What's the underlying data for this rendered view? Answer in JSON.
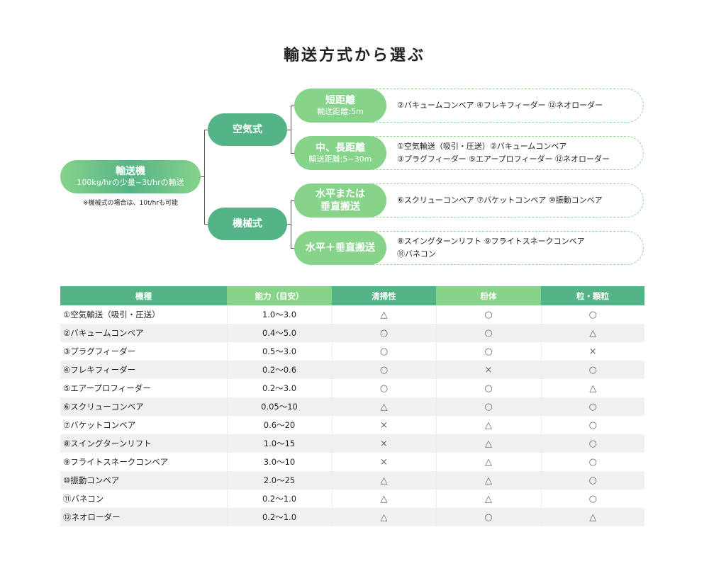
{
  "title": "輸送方式から選ぶ",
  "tree": {
    "root": {
      "label": "輸送機",
      "sub": "100kg/hrの少量~3t/hrの輸送",
      "note": "※機械式の場合は、10t/hrも可能"
    },
    "pneumatic": {
      "label": "空気式"
    },
    "mechanical": {
      "label": "機械式"
    },
    "short": {
      "label": "短距離",
      "sub": "輸送距離:5m",
      "items": [
        "②バキュームコンベア ④フレキフィーダー ⑫ネオローダー"
      ]
    },
    "long": {
      "label": "中、長距離",
      "sub": "輸送距離:5~30m",
      "items": [
        "①空気輸送（吸引・圧送）②バキュームコンベア",
        "③プラグフィーダー ⑤エアープロフィーダー ⑫ネオローダー"
      ]
    },
    "horizontal_or_vertical": {
      "label1": "水平または",
      "label2": "垂直搬送",
      "items": [
        "⑥スクリューコンベア ⑦バケットコンベア ⑩振動コンベア"
      ]
    },
    "horizontal_and_vertical": {
      "label": "水平＋垂直搬送",
      "items": [
        "⑧スイングターンリフト ⑨フライトスネークコンベア",
        "⑪バネコン"
      ]
    }
  },
  "table": {
    "headers": [
      "機種",
      "能力（目安）",
      "清掃性",
      "粉体",
      "粒・顆粒"
    ],
    "rows": [
      [
        "①空気輸送（吸引・圧送）",
        "1.0〜3.0",
        "△",
        "○",
        "○"
      ],
      [
        "②バキュームコンベア",
        "0.4〜5.0",
        "○",
        "○",
        "△"
      ],
      [
        "③プラグフィーダー",
        "0.5〜3.0",
        "○",
        "○",
        "×"
      ],
      [
        "④フレキフィーダー",
        "0.2〜0.6",
        "○",
        "×",
        "○"
      ],
      [
        "⑤エアープロフィーダー",
        "0.2〜3.0",
        "○",
        "○",
        "△"
      ],
      [
        "⑥スクリューコンベア",
        "0.05〜10",
        "△",
        "○",
        "○"
      ],
      [
        "⑦バケットコンベア",
        "0.6〜20",
        "×",
        "△",
        "○"
      ],
      [
        "⑧スイングターンリフト",
        "1.0〜15",
        "×",
        "△",
        "○"
      ],
      [
        "⑨フライトスネークコンベア",
        "3.0〜10",
        "×",
        "△",
        "○"
      ],
      [
        "⑩振動コンベア",
        "2.0〜25",
        "△",
        "△",
        "○"
      ],
      [
        "⑪バネコン",
        "0.2〜1.0",
        "△",
        "△",
        "○"
      ],
      [
        "⑫ネオローダー",
        "0.2〜1.0",
        "△",
        "○",
        "△"
      ]
    ]
  },
  "colors": {
    "dark_green": "#55b487",
    "light_green": "#86d38a",
    "dash": "#8fd98f"
  }
}
